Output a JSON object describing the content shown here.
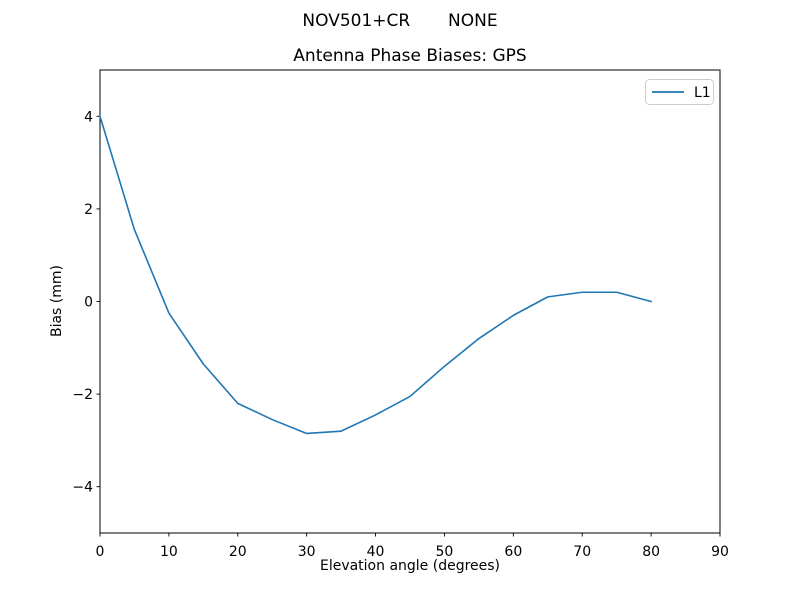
{
  "suptitle": "NOV501+CR       NONE",
  "chart_data": {
    "type": "line",
    "title": "Antenna Phase Biases: GPS",
    "xlabel": "Elevation angle (degrees)",
    "ylabel": "Bias (mm)",
    "xlim": [
      0,
      90
    ],
    "ylim": [
      -5,
      5
    ],
    "grid": false,
    "xticks": {
      "values": [
        0,
        10,
        20,
        30,
        40,
        50,
        60,
        70,
        80,
        90
      ],
      "labels": [
        "0",
        "10",
        "20",
        "30",
        "40",
        "50",
        "60",
        "70",
        "80",
        "90"
      ]
    },
    "yticks": {
      "values": [
        -4,
        -2,
        0,
        2,
        4
      ],
      "labels": [
        "−4",
        "−2",
        "0",
        "2",
        "4"
      ]
    },
    "legend": {
      "location": "upper right",
      "entries": [
        {
          "label": "L1",
          "color": "#1f77b4"
        }
      ]
    },
    "series": [
      {
        "name": "L1",
        "color": "#1f77b4",
        "x": [
          0,
          5,
          10,
          15,
          20,
          25,
          30,
          35,
          40,
          45,
          50,
          55,
          60,
          65,
          70,
          75,
          80
        ],
        "y": [
          4.0,
          1.55,
          -0.25,
          -1.35,
          -2.2,
          -2.55,
          -2.85,
          -2.8,
          -2.45,
          -2.05,
          -1.4,
          -0.8,
          -0.3,
          0.1,
          0.2,
          0.2,
          0.0
        ]
      }
    ]
  },
  "colors": {
    "background": "#ffffff",
    "line": "#1f77b4",
    "axes": "#000000",
    "legend_border": "#cccccc"
  }
}
